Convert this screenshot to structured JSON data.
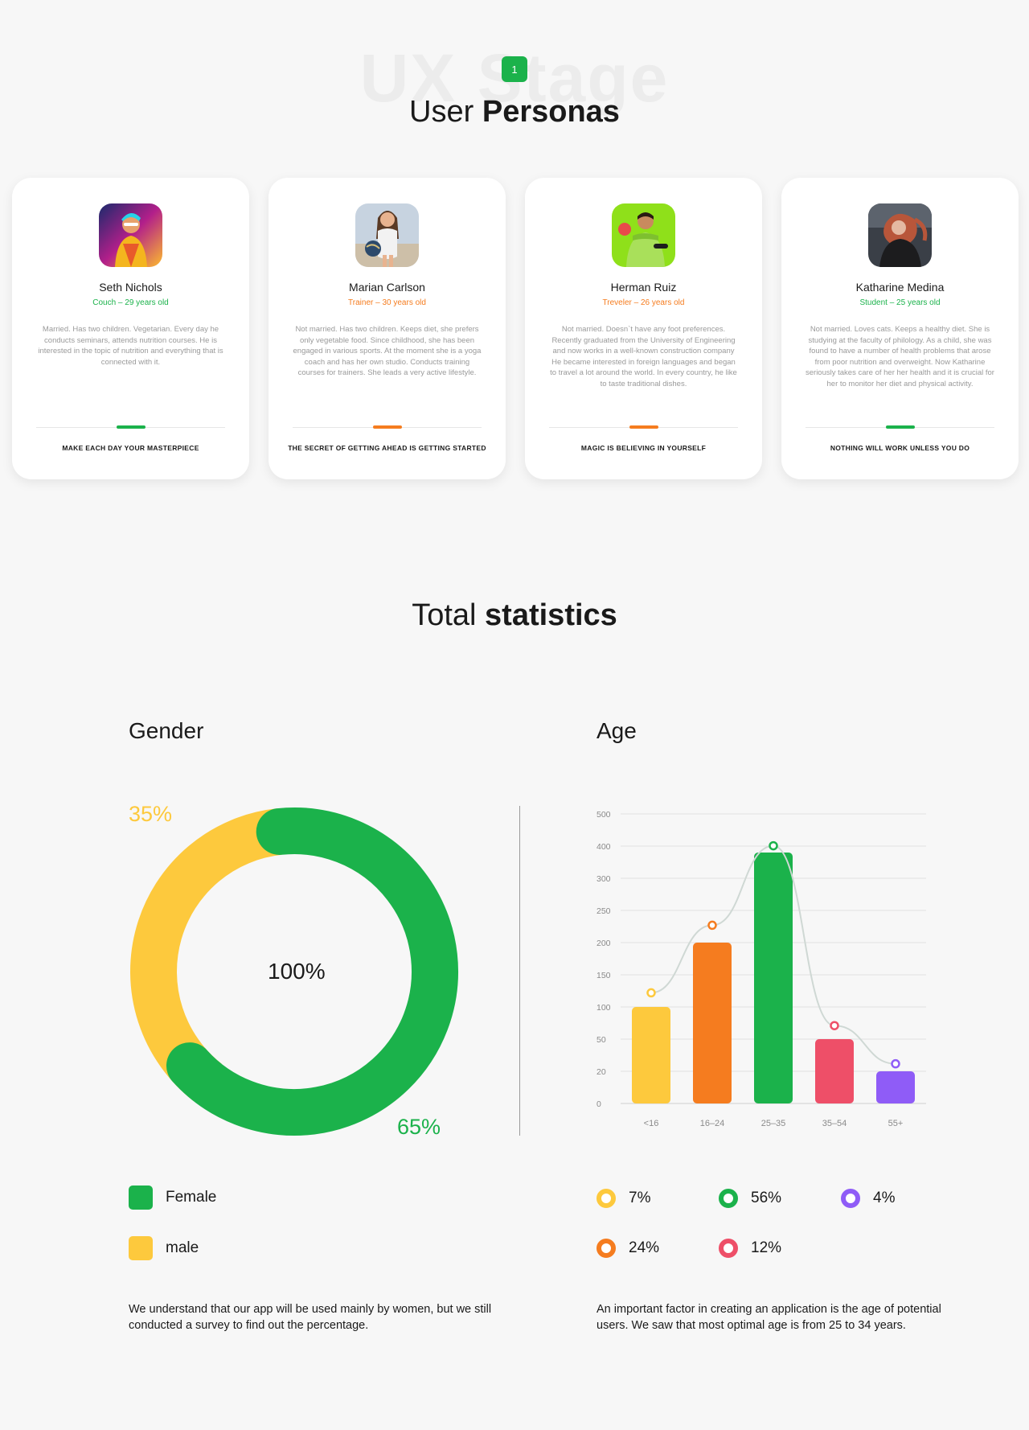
{
  "header": {
    "watermark": "UX Stage",
    "stage_number": "1",
    "title_light": "User",
    "title_bold": "Personas"
  },
  "personas": [
    {
      "name": "Seth Nichols",
      "role": "Couch – 29 years old",
      "role_color": "#1bb24b",
      "description": "Married. Has two children. Vegetarian. Every day he conducts seminars, attends nutrition courses. He is interested in the topic of nutrition and everything that is connected with it.",
      "motto": "MAKE EACH DAY YOUR MASTERPIECE",
      "accent": "#1bb24b"
    },
    {
      "name": "Marian Carlson",
      "role": "Trainer – 30 years old",
      "role_color": "#f57c1f",
      "description": "Not married. Has two children. Keeps diet, she prefers only vegetable food. Since childhood, she has been engaged in various sports. At the moment she is a yoga coach and has her own studio. Conducts training courses for trainers. She leads a very active lifestyle.",
      "motto": "THE SECRET OF GETTING AHEAD IS GETTING STARTED",
      "accent": "#f57c1f"
    },
    {
      "name": "Herman Ruiz",
      "role": "Treveler – 26 years old",
      "role_color": "#f57c1f",
      "description": "Not married. Doesn`t have any foot preferences. Recently graduated from the University of Engineering and now works in a well-known construction company He became interested in foreign languages and began to travel a lot around the world. In every country, he like to taste traditional dishes.",
      "motto": "MAGIC IS BELIEVING IN YOURSELF",
      "accent": "#f57c1f"
    },
    {
      "name": "Katharine Medina",
      "role": "Student – 25 years old",
      "role_color": "#1bb24b",
      "description": "Not married. Loves cats. Keeps a healthy diet. She is studying at the faculty of philology. As a child, she was found to have a number of health problems that arose from poor nutrition and overweight. Now Katharine seriously takes care of her her health and it is crucial for her to monitor her diet and physical activity.",
      "motto": "NOTHING WILL WORK UNLESS YOU DO",
      "accent": "#1bb24b"
    }
  ],
  "stats": {
    "title_light": "Total",
    "title_bold": "statistics",
    "gender": {
      "heading": "Gender",
      "center_label": "100%",
      "female_pct_label": "65%",
      "male_pct_label": "35%",
      "legend": [
        {
          "label": "Female",
          "color": "#1bb24b"
        },
        {
          "label": "male",
          "color": "#fdc93d"
        }
      ],
      "note": "We understand that our app will be used mainly by women, but we still conducted a survey to find out the percentage."
    },
    "age": {
      "heading": "Age",
      "legend": [
        {
          "label": "7%",
          "color": "#fdc93d"
        },
        {
          "label": "56%",
          "color": "#1bb24b"
        },
        {
          "label": "4%",
          "color": "#8f5cf7"
        },
        {
          "label": "24%",
          "color": "#f57c1f"
        },
        {
          "label": "12%",
          "color": "#ee4f68"
        }
      ],
      "note": "An important factor in creating an application is the age of potential users. We saw that most optimal age is from 25 to 34 years."
    }
  },
  "chart_data": [
    {
      "type": "pie",
      "title": "Gender",
      "categories": [
        "Female",
        "male"
      ],
      "values": [
        65,
        35
      ],
      "colors": [
        "#1bb24b",
        "#fdc93d"
      ],
      "center_label": "100%"
    },
    {
      "type": "bar",
      "title": "Age",
      "categories": [
        "<16",
        "16–24",
        "25–35",
        "35–54",
        "55+"
      ],
      "y_tick_labels": [
        "0",
        "20",
        "50",
        "100",
        "150",
        "200",
        "250",
        "300",
        "400",
        "500"
      ],
      "values": [
        100,
        200,
        380,
        50,
        20
      ],
      "colors": [
        "#fdc93d",
        "#f57c1f",
        "#1bb24b",
        "#ee4f68",
        "#8f5cf7"
      ],
      "line_points": [
        122,
        227,
        401,
        71,
        27
      ],
      "line_color": "#cfd8d4",
      "grid": true
    }
  ]
}
